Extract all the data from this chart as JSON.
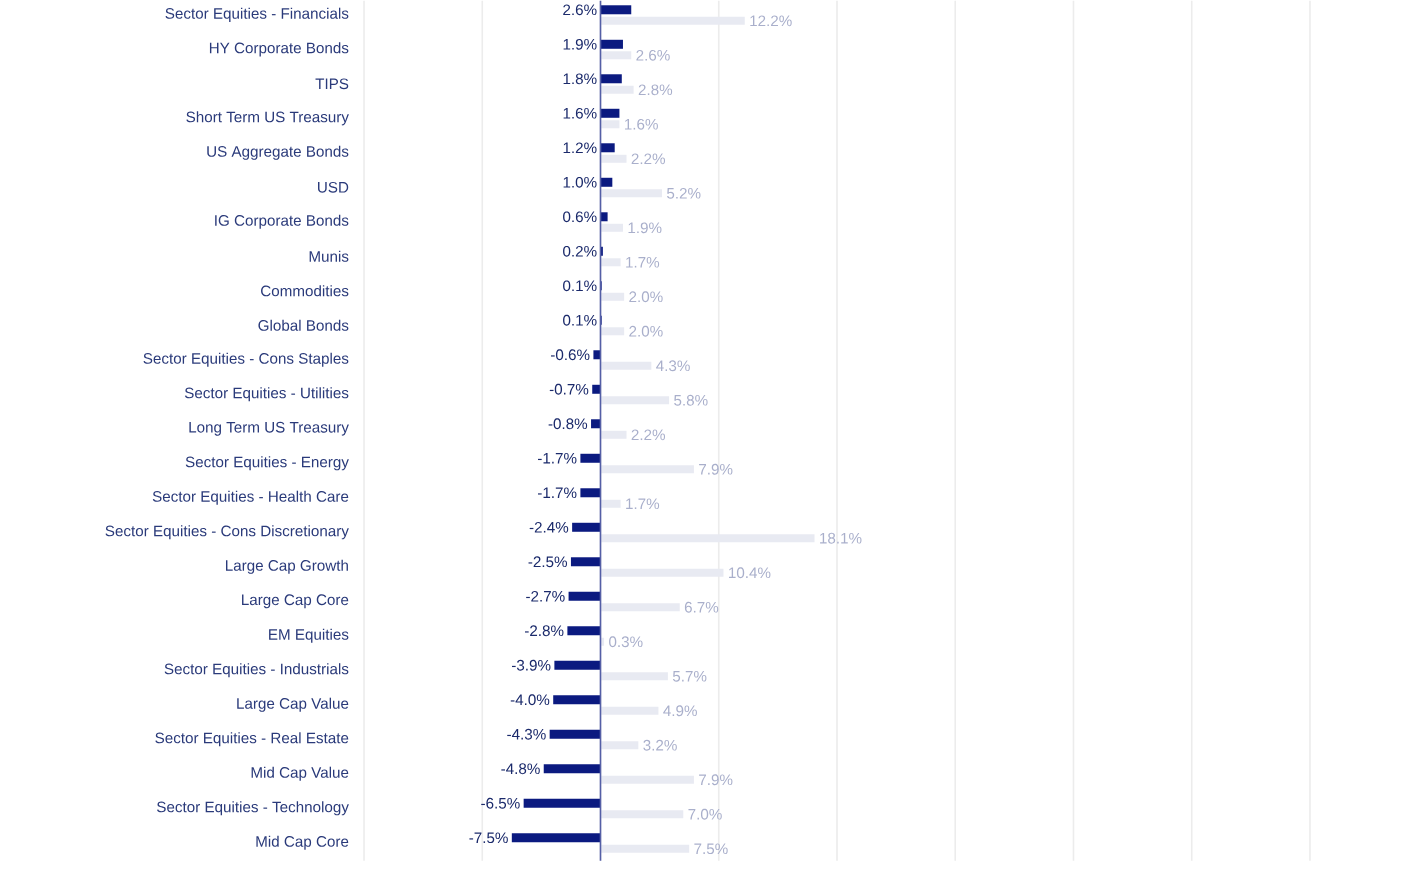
{
  "chart_data": {
    "type": "bar",
    "orientation": "horizontal",
    "categories": [
      "Sector Equities - Financials",
      "HY Corporate Bonds",
      "TIPS",
      "Short Term US Treasury",
      "US Aggregate Bonds",
      "USD",
      "IG Corporate Bonds",
      "Munis",
      "Commodities",
      "Global Bonds",
      "Sector Equities - Cons Staples",
      "Sector Equities - Utilities",
      "Long Term US Treasury",
      "Sector Equities - Energy",
      "Sector Equities - Health Care",
      "Sector Equities - Cons Discretionary",
      "Large Cap Growth",
      "Large Cap Core",
      "EM Equities",
      "Sector Equities - Industrials",
      "Large Cap Value",
      "Sector Equities - Real Estate",
      "Mid Cap Value",
      "Sector Equities - Technology",
      "Mid Cap Core"
    ],
    "series": [
      {
        "color": "#0b1a80",
        "values": [
          2.6,
          1.9,
          1.8,
          1.6,
          1.2,
          1.0,
          0.6,
          0.2,
          0.1,
          0.1,
          -0.6,
          -0.7,
          -0.8,
          -1.7,
          -1.7,
          -2.4,
          -2.5,
          -2.7,
          -2.8,
          -3.9,
          -4.0,
          -4.3,
          -4.8,
          -6.5,
          -7.5
        ],
        "value_labels": [
          "2.6%",
          "1.9%",
          "1.8%",
          "1.6%",
          "1.2%",
          "1.0%",
          "0.6%",
          "0.2%",
          "0.1%",
          "0.1%",
          "-0.6%",
          "-0.7%",
          "-0.8%",
          "-1.7%",
          "-1.7%",
          "-2.4%",
          "-2.5%",
          "-2.7%",
          "-2.8%",
          "-3.9%",
          "-4.0%",
          "-4.3%",
          "-4.8%",
          "-6.5%",
          "-7.5%"
        ]
      },
      {
        "color": "#e8eaf2",
        "values": [
          12.2,
          2.6,
          2.8,
          1.6,
          2.2,
          5.2,
          1.9,
          1.7,
          2.0,
          2.0,
          4.3,
          5.8,
          2.2,
          7.9,
          1.7,
          18.1,
          10.4,
          6.7,
          0.3,
          5.7,
          4.9,
          3.2,
          7.9,
          7.0,
          7.5
        ],
        "value_labels": [
          "12.2%",
          "2.6%",
          "2.8%",
          "1.6%",
          "2.2%",
          "5.2%",
          "1.9%",
          "1.7%",
          "2.0%",
          "2.0%",
          "4.3%",
          "5.8%",
          "2.2%",
          "7.9%",
          "1.7%",
          "18.1%",
          "10.4%",
          "6.7%",
          "0.3%",
          "5.7%",
          "4.9%",
          "3.2%",
          "7.9%",
          "7.0%",
          "7.5%"
        ]
      }
    ],
    "xlim": [
      -20,
      60
    ],
    "xticks": [
      {
        "value": -20,
        "label": null
      },
      {
        "value": -10,
        "label": null
      },
      {
        "value": 0,
        "label": null
      },
      {
        "value": 10,
        "label": null
      },
      {
        "value": 20,
        "label": null
      },
      {
        "value": 30,
        "label": null
      },
      {
        "value": 40,
        "label": null
      },
      {
        "value": 50,
        "label": null
      },
      {
        "value": 60,
        "label": null
      }
    ],
    "ref_lines": [
      {
        "axis": "x",
        "value": 0,
        "color": "#545fa6"
      }
    ],
    "grid": "x",
    "tick_labels": "y"
  }
}
